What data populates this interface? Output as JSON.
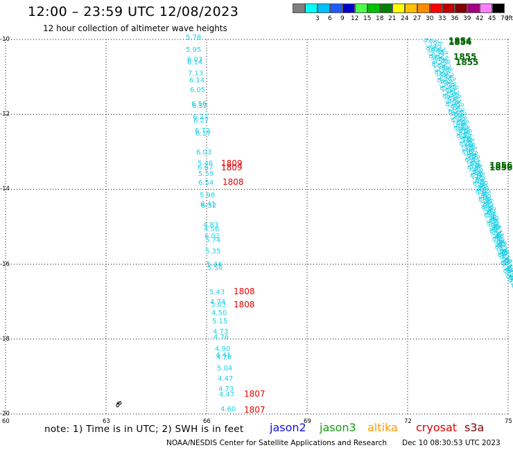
{
  "header": {
    "title": "12:00 – 23:59 UTC 12/08/2023",
    "subtitle": "12 hour collection of altimeter wave heights"
  },
  "legend": {
    "unit_label": "(ft)",
    "bins": [
      {
        "label": "",
        "color": "#7f7f7f"
      },
      {
        "label": "3",
        "color": "#00ffff"
      },
      {
        "label": "6",
        "color": "#00bfff"
      },
      {
        "label": "9",
        "color": "#1e5bff"
      },
      {
        "label": "12",
        "color": "#0000cd"
      },
      {
        "label": "15",
        "color": "#4cff4c"
      },
      {
        "label": "18",
        "color": "#00c000"
      },
      {
        "label": "21",
        "color": "#008000"
      },
      {
        "label": "24",
        "color": "#ffff00"
      },
      {
        "label": "27",
        "color": "#ffc000"
      },
      {
        "label": "30",
        "color": "#ff8c00"
      },
      {
        "label": "33",
        "color": "#ff0000"
      },
      {
        "label": "36",
        "color": "#c00000"
      },
      {
        "label": "39",
        "color": "#800000"
      },
      {
        "label": "42",
        "color": "#a0007f"
      },
      {
        "label": "45",
        "color": "#ff80ff"
      },
      {
        "label": "70",
        "color": "#000000"
      }
    ]
  },
  "map": {
    "lat_labels": [
      "-10",
      "-12",
      "-14",
      "-16",
      "-18",
      "-20"
    ],
    "lon_labels": [
      "60",
      "63",
      "66",
      "69",
      "72",
      "75"
    ],
    "colors": {
      "swh": "#1ecfe6",
      "s3a_times": "#e00000",
      "jason3_times": "#006400"
    },
    "track_west": {
      "swh": [
        "5.78",
        "5.95",
        "6.03",
        "6.14",
        "7.13",
        "6.14",
        "6.05",
        "6.56",
        "6.52",
        "6.27",
        "6.27",
        "6.72",
        "6.17",
        "6.03",
        "5.46",
        "6.67",
        "5.59",
        "6.54",
        "5.98",
        "6.41",
        "6.32",
        "4.83",
        "4.56",
        "6.02",
        "5.74",
        "5.35",
        "5.44",
        "5.50",
        "5.43",
        "4.74",
        "5.03",
        "4.50",
        "5.15",
        "4.73",
        "4.76",
        "4.90",
        "4.41",
        "4.28",
        "5.04",
        "4.47",
        "4.73",
        "4.47",
        "4.60"
      ],
      "times": [
        "1809",
        "1809",
        "1808",
        "1808",
        "1808",
        "1807",
        "1807"
      ]
    },
    "track_east": {
      "times": [
        "1854",
        "1854",
        "1855",
        "1855",
        "1856",
        "1856"
      ]
    }
  },
  "footer": {
    "note": "note:  1) Time is in UTC;  2) SWH is in feet",
    "missions": [
      {
        "name": "jason2",
        "color": "#1010e0"
      },
      {
        "name": "jason3",
        "color": "#10a010"
      },
      {
        "name": "altika",
        "color": "#ff9900"
      },
      {
        "name": "cryosat",
        "color": "#e00000"
      },
      {
        "name": "s3a",
        "color": "#800000"
      }
    ],
    "credit": "NOAA/NESDIS Center for Satellite Applications and Research",
    "timestamp": "Dec 10 08:30:53 UTC 2023"
  }
}
